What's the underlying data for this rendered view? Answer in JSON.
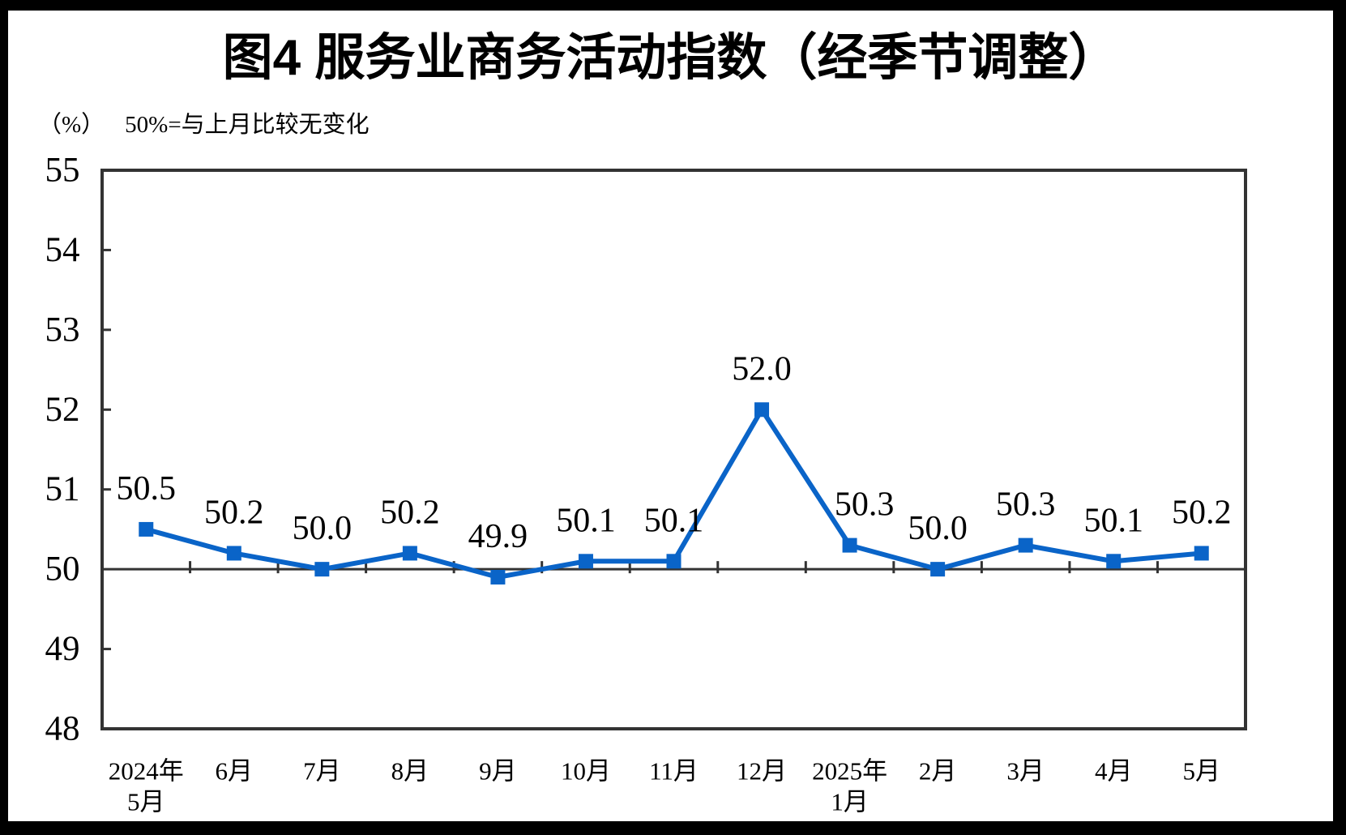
{
  "chart_data": {
    "type": "line",
    "title": "图4 服务业商务活动指数（经季节调整）",
    "unit_label": "（%）",
    "subtitle": "50%=与上月比较无变化",
    "categories": [
      "2024年\n5月",
      "6月",
      "7月",
      "8月",
      "9月",
      "10月",
      "11月",
      "12月",
      "2025年\n1月",
      "2月",
      "3月",
      "4月",
      "5月"
    ],
    "values": [
      50.5,
      50.2,
      50.0,
      50.2,
      49.9,
      50.1,
      50.1,
      52.0,
      50.3,
      50.0,
      50.3,
      50.1,
      50.2
    ],
    "data_labels": [
      "50.5",
      "50.2",
      "50.0",
      "50.2",
      "49.9",
      "50.1",
      "50.1",
      "52.0",
      "50.3",
      "50.0",
      "50.3",
      "50.1",
      "50.2"
    ],
    "ylim": [
      48,
      55
    ],
    "yticks": [
      48,
      49,
      50,
      51,
      52,
      53,
      54,
      55
    ],
    "ytick_step": 1,
    "baseline_value": 50,
    "xlabel": "",
    "ylabel": "",
    "grid": "off",
    "legend": "none",
    "marker": "square",
    "series_color": "#0A64C8",
    "axis_color": "#333333",
    "text_color": "#000000",
    "label_dx": [
      0,
      0,
      0,
      0,
      0,
      0,
      0,
      0,
      18,
      0,
      0,
      0,
      0
    ],
    "label_dy": [
      0,
      0,
      0,
      0,
      0,
      0,
      0,
      0,
      0,
      0,
      0,
      0,
      0
    ]
  }
}
